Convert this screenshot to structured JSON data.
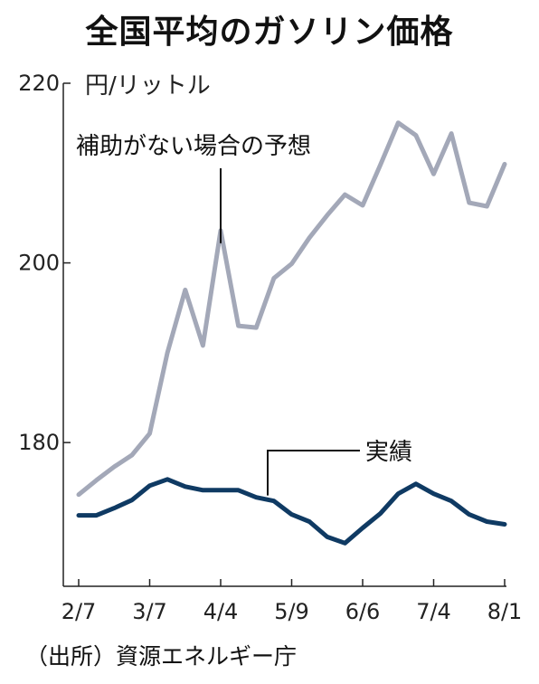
{
  "title": "全国平均のガソリン価格",
  "source": "（出所）資源エネルギー庁",
  "chart_data": {
    "type": "line",
    "unit": "円/リットル",
    "x_tick_labels": [
      "2/7",
      "3/7",
      "4/4",
      "5/9",
      "6/6",
      "7/4",
      "8/1"
    ],
    "y_ticks": [
      180,
      200,
      220
    ],
    "ylim": [
      164,
      220
    ],
    "grid": false,
    "series": [
      {
        "name": "補助がない場合の予想",
        "color": "#a3a8b8",
        "values": [
          174.2,
          175.8,
          177.3,
          178.6,
          181.0,
          190.0,
          197.0,
          190.8,
          203.6,
          193.0,
          192.8,
          198.3,
          199.9,
          202.8,
          205.3,
          207.6,
          206.4,
          210.9,
          215.6,
          214.2,
          209.9,
          214.4,
          206.7,
          206.3,
          211.0
        ]
      },
      {
        "name": "実績",
        "color": "#0f3a63",
        "values": [
          171.9,
          171.9,
          172.7,
          173.6,
          175.2,
          175.9,
          175.1,
          174.7,
          174.7,
          174.7,
          173.9,
          173.5,
          172.0,
          171.2,
          169.5,
          168.8,
          170.5,
          172.1,
          174.3,
          175.4,
          174.3,
          173.5,
          172.0,
          171.2,
          170.9
        ]
      }
    ]
  }
}
